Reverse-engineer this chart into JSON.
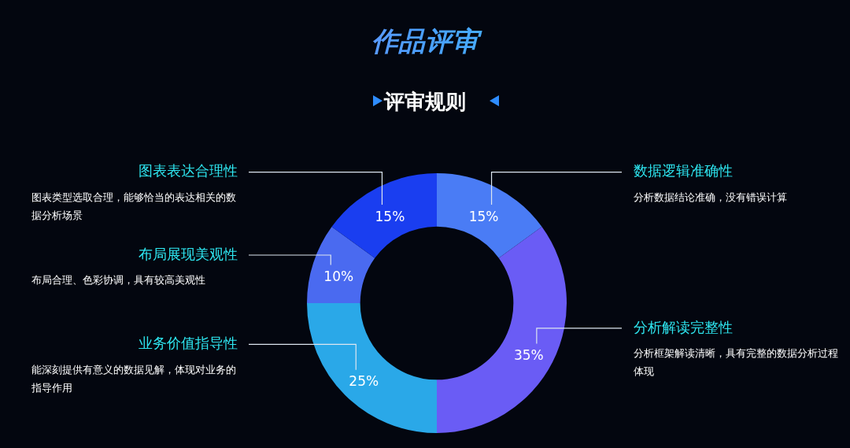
{
  "chart_data": {
    "type": "donut",
    "title": "作品评审",
    "subtitle": "评审规则",
    "categories": [
      "数据逻辑准确性",
      "分析解读完整性",
      "业务价值指导性",
      "布局展现美观性",
      "图表表达合理性"
    ],
    "values": [
      15,
      35,
      25,
      10,
      15
    ],
    "value_labels": [
      "15%",
      "35%",
      "25%",
      "10%",
      "15%"
    ],
    "colors": [
      "#4a7cf5",
      "#6a5cf5",
      "#2aa8e8",
      "#4a6af0",
      "#1a3ef0"
    ],
    "annotations": [
      "分析数据结论准确，没有错误计算",
      "分析框架解读清晰，具有完整的数据分析过程体现",
      "能深刻提供有意义的数据见解，体现对业务的指导作用",
      "布局合理、色彩协调，具有较高美观性",
      "图表类型选取合理，能够恰当的表达相关的数据分析场景"
    ],
    "legend": false
  }
}
